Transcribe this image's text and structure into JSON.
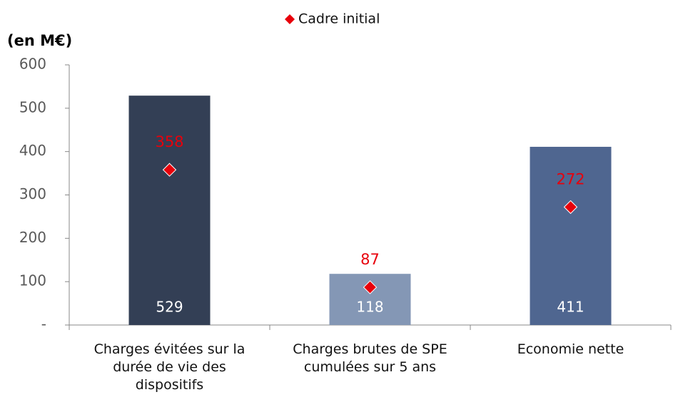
{
  "chart_data": {
    "type": "bar",
    "y_label": "(en M€)",
    "categories": [
      "Charges évitées sur la durée de vie des dispositifs",
      "Charges brutes de SPE cumulées sur 5 ans",
      "Economie nette"
    ],
    "values": [
      529,
      118,
      411
    ],
    "colors": [
      "#333f55",
      "#8497b5",
      "#4f6690"
    ],
    "markers": {
      "name": "Cadre initial",
      "color": "#e8000b",
      "values": [
        358,
        87,
        272
      ]
    },
    "ylim": [
      0,
      600
    ],
    "yticks": [
      {
        "value": 0,
        "label": "-"
      },
      100,
      200,
      300,
      400,
      500,
      600
    ]
  }
}
